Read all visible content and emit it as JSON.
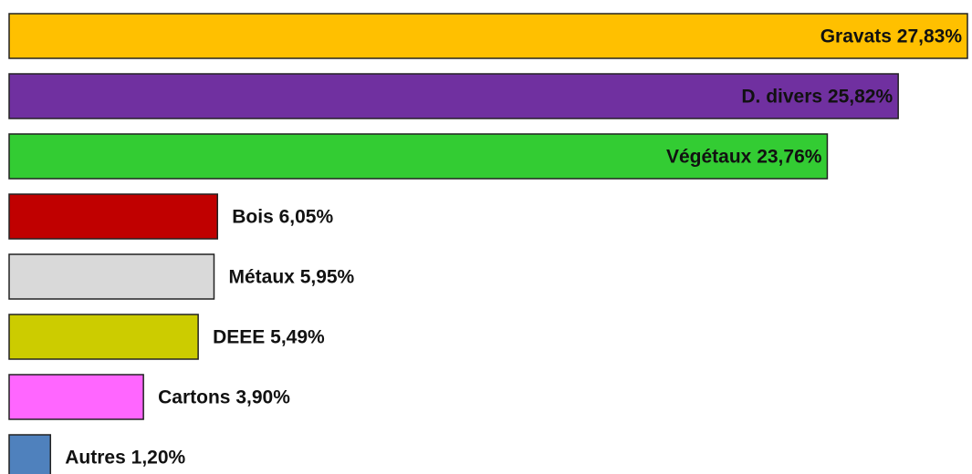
{
  "chart_data": {
    "type": "hbar",
    "categories": [
      "Gravats",
      "D. divers",
      "Végétaux",
      "Bois",
      "Métaux",
      "DEEE",
      "Cartons",
      "Autres"
    ],
    "values": [
      27.83,
      25.82,
      23.76,
      6.05,
      5.95,
      5.49,
      3.9,
      1.2
    ],
    "value_labels": [
      "27,83%",
      "25,82%",
      "23,76%",
      "6,05%",
      "5,95%",
      "5,49%",
      "3,90%",
      "1,20%"
    ],
    "colors": [
      "#FFC000",
      "#7030A0",
      "#33CC33",
      "#C00000",
      "#D9D9D9",
      "#CCCC00",
      "#FF66FF",
      "#4F81BD"
    ]
  }
}
